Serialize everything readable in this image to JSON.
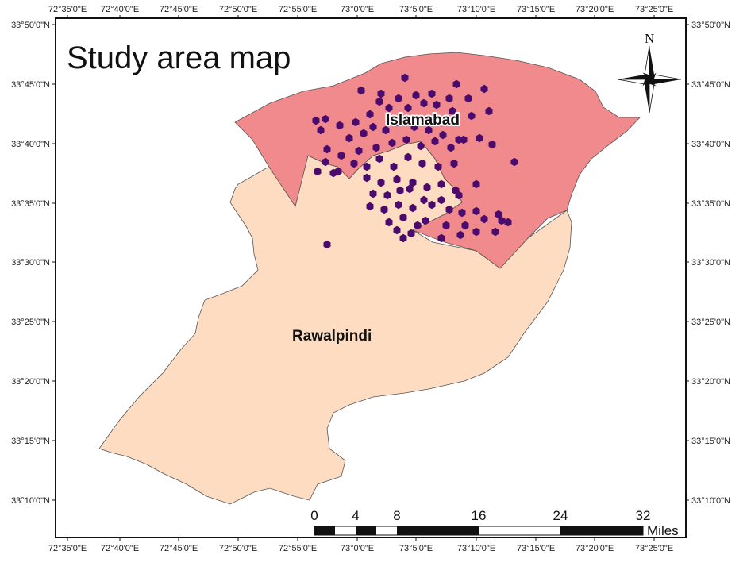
{
  "title": "Study area map",
  "regions": {
    "islamabad": {
      "label": "Islamabad",
      "color": "#F08A8C"
    },
    "rawalpindi": {
      "label": "Rawalpindi",
      "color": "#FDDCC2"
    }
  },
  "point_color": "#4B0A6E",
  "north_label": "N",
  "longitude_ticks": [
    "72°35'0\"E",
    "72°40'0\"E",
    "72°45'0\"E",
    "72°50'0\"E",
    "72°55'0\"E",
    "73°0'0\"E",
    "73°5'0\"E",
    "73°10'0\"E",
    "73°15'0\"E",
    "73°20'0\"E",
    "73°25'0\"E"
  ],
  "latitude_ticks": [
    "33°50'0\"N",
    "33°45'0\"N",
    "33°40'0\"N",
    "33°35'0\"N",
    "33°30'0\"N",
    "33°25'0\"N",
    "33°20'0\"N",
    "33°15'0\"N",
    "33°10'0\"N"
  ],
  "scale_bar": {
    "labels": [
      "0",
      "4",
      "8",
      "16",
      "24",
      "32"
    ],
    "unit": "Miles"
  }
}
